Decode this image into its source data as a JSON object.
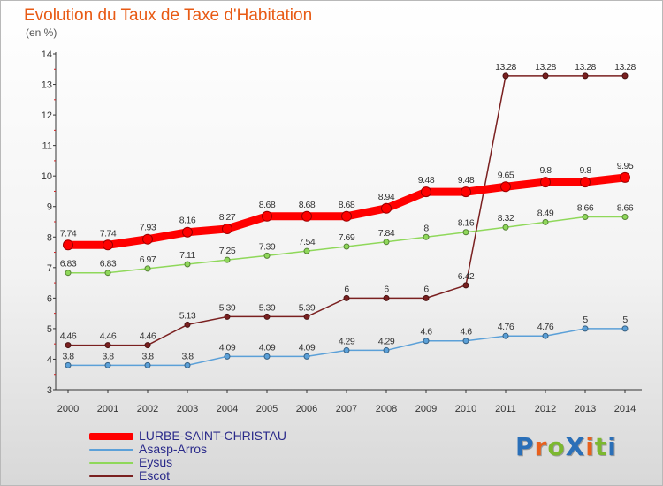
{
  "title": "Evolution du Taux de Taxe d'Habitation",
  "subtitle": "(en %)",
  "logo": {
    "text": "ProXiti",
    "letter_colors": [
      "#2a6fb8",
      "#e8601c",
      "#7cb82f",
      "#2a6fb8",
      "#e8601c",
      "#7cb82f",
      "#2a6fb8"
    ]
  },
  "chart_data": {
    "type": "line",
    "title": "Evolution du Taux de Taxe d'Habitation",
    "ylabel": "(en %)",
    "xlabel": "",
    "ylim": [
      3,
      14
    ],
    "y_ticks": [
      3,
      4,
      5,
      6,
      7,
      8,
      9,
      10,
      11,
      12,
      13,
      14
    ],
    "categories": [
      "2000",
      "2001",
      "2002",
      "2003",
      "2004",
      "2005",
      "2006",
      "2007",
      "2008",
      "2009",
      "2010",
      "2011",
      "2012",
      "2013",
      "2014"
    ],
    "grid": false,
    "legend": "bottom-left",
    "series": [
      {
        "name": "LURBE-SAINT-CHRISTAU",
        "color": "#ff0000",
        "values": [
          7.74,
          7.74,
          7.93,
          8.16,
          8.27,
          8.68,
          8.68,
          8.68,
          8.94,
          9.48,
          9.48,
          9.65,
          9.8,
          9.8,
          9.95
        ],
        "labels": [
          "7.74",
          "7.74",
          "7.93",
          "8.16",
          "8.27",
          "8.68",
          "8.68",
          "8.68",
          "8.94",
          "9.48",
          "9.48",
          "9.65",
          "9.8",
          "9.8",
          "9.95"
        ]
      },
      {
        "name": "Asasp-Arros",
        "color": "#5ba0d8",
        "values": [
          3.8,
          3.8,
          3.8,
          3.8,
          4.09,
          4.09,
          4.09,
          4.29,
          4.29,
          4.6,
          4.6,
          4.76,
          4.76,
          5,
          5
        ],
        "labels": [
          "3.8",
          "3.8",
          "3.8",
          "3.8",
          "4.09",
          "4.09",
          "4.09",
          "4.29",
          "4.29",
          "4.6",
          "4.6",
          "4.76",
          "4.76",
          "5",
          "5"
        ]
      },
      {
        "name": "Eysus",
        "color": "#8fd85a",
        "values": [
          6.83,
          6.83,
          6.97,
          7.11,
          7.25,
          7.39,
          7.54,
          7.69,
          7.84,
          8,
          8.16,
          8.32,
          8.49,
          8.66,
          8.66
        ],
        "labels": [
          "6.83",
          "6.83",
          "6.97",
          "7.11",
          "7.25",
          "7.39",
          "7.54",
          "7.69",
          "7.84",
          "8",
          "8.16",
          "8.32",
          "8.49",
          "8.66",
          "8.66"
        ]
      },
      {
        "name": "Escot",
        "color": "#7a2020",
        "values": [
          4.46,
          4.46,
          4.46,
          5.13,
          5.39,
          5.39,
          5.39,
          6,
          6,
          6,
          6.42,
          13.28,
          13.28,
          13.28,
          13.28
        ],
        "labels": [
          "4.46",
          "4.46",
          "4.46",
          "5.13",
          "5.39",
          "5.39",
          "5.39",
          "6",
          "6",
          "6",
          "6.42",
          "13.28",
          "13.28",
          "13.28",
          "13.28"
        ]
      }
    ]
  }
}
